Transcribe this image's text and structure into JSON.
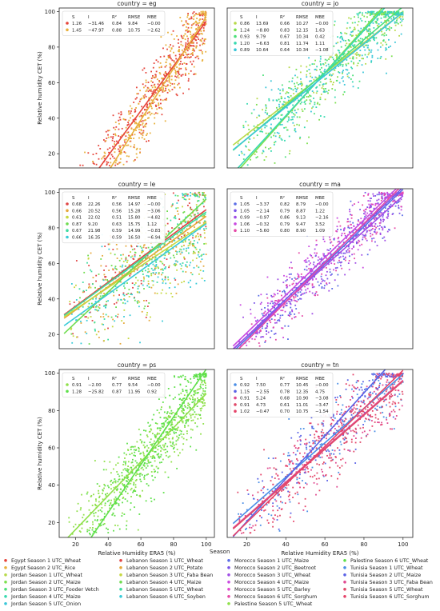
{
  "figure": {
    "legend_title": "Season",
    "shared_xlabel": "Relative Humidity ERA5 (%)",
    "shared_ylabel": "Relative humidity CET (%)",
    "stats_headers": [
      "S",
      "I",
      "R²",
      "RMSE",
      "MBE"
    ]
  },
  "series_colors": {
    "Egypt Season 1 UTC_Wheat": "#e6443a",
    "Egypt Season 2 UTC_Rice": "#e8b13d",
    "Jordan Season 1 UTC_Wheat": "#b7d94a",
    "Jordan Season 2 UTC_Maize": "#7be04e",
    "Jordan Season 3 UTC_Fooder Vetch": "#4de07a",
    "Jordan Season 4 UTC_Maize": "#38d9b0",
    "Jordan Season 5 UTC_Onion": "#3ac6d8",
    "Lebanon Season 1 UTC_Wheat": "#e04545",
    "Lebanon Season 2 UTC_Potato": "#e6a83c",
    "Lebanon Season 3 UTC_Faba Bean": "#c6d840",
    "Lebanon Season 4 UTC_Maize": "#6fdc50",
    "Lebanon Season 5 UTC_Wheat": "#3fdca0",
    "Lebanon Season 6 UTC_Soyben": "#39cbd8",
    "Morocco Season 1 UTC_Maize": "#5b6ee6",
    "Morocco Season 2 UTC_Beetroot": "#7c55e8",
    "Morocco Season 3 UTC_Wheat": "#a04de6",
    "Morocco Season 4 UTC_Maize": "#c94ae0",
    "Morocco Season 5 UTC_Barley": "#e04ad0",
    "Morocco Season 6 UTC_Sorghum": "#e64aa8",
    "Palestine Season 5 UTC_Wheat": "#8fe04a",
    "Palestine Season 6 UTC_Wheat": "#5ee04a",
    "Tunisia Season 1 UTC_Wheat": "#4a8ee6",
    "Tunisia Season 2 UTC_Maize": "#5a62e6",
    "Tunisia Season 3 UTC_Faba Bean": "#e04a90",
    "Tunisia Season 5 UTC_Wheat": "#e04a6a",
    "Tunisia Season 6 UTC_Sorghum": "#e6446a"
  },
  "legend_entries": [
    "Egypt Season 1 UTC_Wheat",
    "Egypt Season 2 UTC_Rice",
    "Jordan Season 1 UTC_Wheat",
    "Jordan Season 2 UTC_Maize",
    "Jordan Season 3 UTC_Fooder Vetch",
    "Jordan Season 4 UTC_Maize",
    "Jordan Season 5 UTC_Onion",
    "Lebanon Season 1 UTC_Wheat",
    "Lebanon Season 2 UTC_Potato",
    "Lebanon Season 3 UTC_Faba Bean",
    "Lebanon Season 4 UTC_Maize",
    "Lebanon Season 5 UTC_Wheat",
    "Lebanon Season 6 UTC_Soyben",
    "Morocco Season 1 UTC_Maize",
    "Morocco Season 2 UTC_Beetroot",
    "Morocco Season 3 UTC_Wheat",
    "Morocco Season 4 UTC_Maize",
    "Morocco Season 5 UTC_Barley",
    "Morocco Season 6 UTC_Sorghum",
    "Palestine Season 5 UTC_Wheat",
    "Palestine Season 6 UTC_Wheat",
    "Tunisia Season 1 UTC_Wheat",
    "Tunisia Season 2 UTC_Maize",
    "Tunisia Season 3 UTC_Faba Bean",
    "Tunisia Season 5 UTC_Wheat",
    "Tunisia Season 6 UTC_Sorghum"
  ],
  "chart_data": [
    {
      "type": "scatter",
      "title": "country = eg",
      "xlim": [
        10,
        105
      ],
      "ylim": [
        12,
        102
      ],
      "xticks": [],
      "yticks": [
        20,
        40,
        60,
        80,
        100
      ],
      "xlabel": "",
      "ylabel": "Relative humidity CET (%)",
      "series": [
        {
          "name": "Egypt Season 1 UTC_Wheat",
          "slope": 1.26,
          "intercept": -31.46,
          "r2": 0.84,
          "rmse": 9.84,
          "mbe": -0.0
        },
        {
          "name": "Egypt Season 2 UTC_Rice",
          "slope": 1.45,
          "intercept": -47.97,
          "r2": 0.88,
          "rmse": 10.75,
          "mbe": -2.62
        }
      ],
      "stats_rows": [
        [
          "1.26",
          "−31.46",
          "0.84",
          "9.84",
          "−0.00"
        ],
        [
          "1.45",
          "−47.97",
          "0.88",
          "10.75",
          "−2.62"
        ]
      ]
    },
    {
      "type": "scatter",
      "title": "country = jo",
      "xlim": [
        10,
        105
      ],
      "ylim": [
        12,
        102
      ],
      "xticks": [],
      "yticks": [],
      "xlabel": "",
      "ylabel": "",
      "series": [
        {
          "name": "Jordan Season 1 UTC_Wheat",
          "slope": 0.86,
          "intercept": 13.69,
          "r2": 0.66,
          "rmse": 10.27,
          "mbe": -0.0
        },
        {
          "name": "Jordan Season 2 UTC_Maize",
          "slope": 1.24,
          "intercept": -8.8,
          "r2": 0.83,
          "rmse": 12.15,
          "mbe": 1.63
        },
        {
          "name": "Jordan Season 3 UTC_Fooder Vetch",
          "slope": 0.93,
          "intercept": 9.79,
          "r2": 0.67,
          "rmse": 10.34,
          "mbe": 0.42
        },
        {
          "name": "Jordan Season 4 UTC_Maize",
          "slope": 1.2,
          "intercept": -6.63,
          "r2": 0.81,
          "rmse": 11.74,
          "mbe": 1.11
        },
        {
          "name": "Jordan Season 5 UTC_Onion",
          "slope": 0.89,
          "intercept": 10.64,
          "r2": 0.64,
          "rmse": 10.34,
          "mbe": -1.08
        }
      ],
      "stats_rows": [
        [
          "0.86",
          "13.69",
          "0.66",
          "10.27",
          "−0.00"
        ],
        [
          "1.24",
          "−8.80",
          "0.83",
          "12.15",
          "1.63"
        ],
        [
          "0.93",
          "9.79",
          "0.67",
          "10.34",
          "0.42"
        ],
        [
          "1.20",
          "−6.63",
          "0.81",
          "11.74",
          "1.11"
        ],
        [
          "0.89",
          "10.64",
          "0.64",
          "10.34",
          "−1.08"
        ]
      ]
    },
    {
      "type": "scatter",
      "title": "country = le",
      "xlim": [
        10,
        105
      ],
      "ylim": [
        12,
        102
      ],
      "xticks": [],
      "yticks": [
        20,
        40,
        60,
        80,
        100
      ],
      "xlabel": "",
      "ylabel": "Relative humidity CET (%)",
      "series": [
        {
          "name": "Lebanon Season 1 UTC_Wheat",
          "slope": 0.68,
          "intercept": 22.26,
          "r2": 0.56,
          "rmse": 14.97,
          "mbe": -0.0
        },
        {
          "name": "Lebanon Season 2 UTC_Potato",
          "slope": 0.66,
          "intercept": 20.52,
          "r2": 0.56,
          "rmse": 15.28,
          "mbe": -3.06
        },
        {
          "name": "Lebanon Season 3 UTC_Faba Bean",
          "slope": 0.61,
          "intercept": 22.02,
          "r2": 0.51,
          "rmse": 15.8,
          "mbe": -4.82
        },
        {
          "name": "Lebanon Season 4 UTC_Maize",
          "slope": 0.87,
          "intercept": 9.2,
          "r2": 0.63,
          "rmse": 15.75,
          "mbe": 1.12
        },
        {
          "name": "Lebanon Season 5 UTC_Wheat",
          "slope": 0.67,
          "intercept": 21.98,
          "r2": 0.59,
          "rmse": 14.99,
          "mbe": -0.83
        },
        {
          "name": "Lebanon Season 6 UTC_Soyben",
          "slope": 0.66,
          "intercept": 16.35,
          "r2": 0.59,
          "rmse": 16.5,
          "mbe": -6.94
        }
      ],
      "stats_rows": [
        [
          "0.68",
          "22.26",
          "0.56",
          "14.97",
          "−0.00"
        ],
        [
          "0.66",
          "20.52",
          "0.56",
          "15.28",
          "−3.06"
        ],
        [
          "0.61",
          "22.02",
          "0.51",
          "15.80",
          "−4.82"
        ],
        [
          "0.87",
          "9.20",
          "0.63",
          "15.75",
          "1.12"
        ],
        [
          "0.67",
          "21.98",
          "0.59",
          "14.99",
          "−0.83"
        ],
        [
          "0.66",
          "16.35",
          "0.59",
          "16.50",
          "−6.94"
        ]
      ]
    },
    {
      "type": "scatter",
      "title": "country = ma",
      "xlim": [
        10,
        105
      ],
      "ylim": [
        12,
        102
      ],
      "xticks": [],
      "yticks": [],
      "xlabel": "",
      "ylabel": "",
      "series": [
        {
          "name": "Morocco Season 1 UTC_Maize",
          "slope": 1.05,
          "intercept": -3.37,
          "r2": 0.82,
          "rmse": 8.79,
          "mbe": -0.0
        },
        {
          "name": "Morocco Season 2 UTC_Beetroot",
          "slope": 1.05,
          "intercept": -2.14,
          "r2": 0.79,
          "rmse": 8.87,
          "mbe": 1.22
        },
        {
          "name": "Morocco Season 3 UTC_Wheat",
          "slope": 0.99,
          "intercept": -0.97,
          "r2": 0.86,
          "rmse": 9.13,
          "mbe": -2.16
        },
        {
          "name": "Morocco Season 4 UTC_Maize",
          "slope": 1.06,
          "intercept": -0.32,
          "r2": 0.79,
          "rmse": 9.47,
          "mbe": 3.52
        },
        {
          "name": "Morocco Season 6 UTC_Sorghum",
          "slope": 1.1,
          "intercept": -5.6,
          "r2": 0.8,
          "rmse": 8.9,
          "mbe": 1.09
        }
      ],
      "stats_rows": [
        [
          "1.05",
          "−3.37",
          "0.82",
          "8.79",
          "−0.00"
        ],
        [
          "1.05",
          "−2.14",
          "0.79",
          "8.87",
          "1.22"
        ],
        [
          "0.99",
          "−0.97",
          "0.86",
          "9.13",
          "−2.16"
        ],
        [
          "1.06",
          "−0.32",
          "0.79",
          "9.47",
          "3.52"
        ],
        [
          "1.10",
          "−5.60",
          "0.80",
          "8.90",
          "1.09"
        ]
      ]
    },
    {
      "type": "scatter",
      "title": "country = ps",
      "xlim": [
        10,
        105
      ],
      "ylim": [
        12,
        102
      ],
      "xticks": [
        20,
        40,
        60,
        80,
        100
      ],
      "yticks": [
        20,
        40,
        60,
        80,
        100
      ],
      "xlabel": "Relative Humidity ERA5 (%)",
      "ylabel": "Relative humidity CET (%)",
      "series": [
        {
          "name": "Palestine Season 5 UTC_Wheat",
          "slope": 0.91,
          "intercept": -2.0,
          "r2": 0.77,
          "rmse": 9.54,
          "mbe": -0.0
        },
        {
          "name": "Palestine Season 6 UTC_Wheat",
          "slope": 1.28,
          "intercept": -25.82,
          "r2": 0.87,
          "rmse": 11.95,
          "mbe": 0.92
        }
      ],
      "stats_rows": [
        [
          "0.91",
          "−2.00",
          "0.77",
          "9.54",
          "−0.00"
        ],
        [
          "1.28",
          "−25.82",
          "0.87",
          "11.95",
          "0.92"
        ]
      ]
    },
    {
      "type": "scatter",
      "title": "country = tn",
      "xlim": [
        10,
        105
      ],
      "ylim": [
        12,
        102
      ],
      "xticks": [
        20,
        40,
        60,
        80,
        100
      ],
      "yticks": [],
      "xlabel": "Relative Humidity ERA5 (%)",
      "ylabel": "",
      "series": [
        {
          "name": "Tunisia Season 1 UTC_Wheat",
          "slope": 0.92,
          "intercept": 7.5,
          "r2": 0.77,
          "rmse": 10.45,
          "mbe": -0.0
        },
        {
          "name": "Tunisia Season 2 UTC_Maize",
          "slope": 1.15,
          "intercept": -2.55,
          "r2": 0.78,
          "rmse": 12.35,
          "mbe": 4.75
        },
        {
          "name": "Tunisia Season 3 UTC_Faba Bean",
          "slope": 0.91,
          "intercept": 5.24,
          "r2": 0.68,
          "rmse": 10.9,
          "mbe": -3.08
        },
        {
          "name": "Tunisia Season 5 UTC_Wheat",
          "slope": 0.91,
          "intercept": 4.73,
          "r2": 0.61,
          "rmse": 11.01,
          "mbe": -3.47
        },
        {
          "name": "Tunisia Season 6 UTC_Sorghum",
          "slope": 1.02,
          "intercept": -0.47,
          "r2": 0.7,
          "rmse": 10.75,
          "mbe": -1.54
        }
      ],
      "stats_rows": [
        [
          "0.92",
          "7.50",
          "0.77",
          "10.45",
          "−0.00"
        ],
        [
          "1.15",
          "−2.55",
          "0.78",
          "12.35",
          "4.75"
        ],
        [
          "0.91",
          "5.24",
          "0.68",
          "10.90",
          "−3.08"
        ],
        [
          "0.91",
          "4.73",
          "0.61",
          "11.01",
          "−3.47"
        ],
        [
          "1.02",
          "−0.47",
          "0.70",
          "10.75",
          "−1.54"
        ]
      ]
    }
  ]
}
